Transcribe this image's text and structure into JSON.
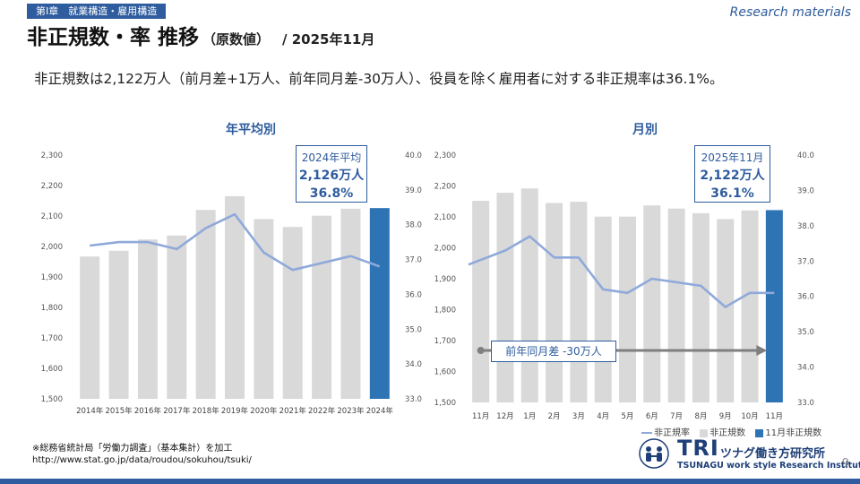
{
  "header": {
    "chapter": "第Ⅰ章　就業構造・雇用構造",
    "brand": "Research materials",
    "title_main": "非正規数・率 推移",
    "title_sub": "（原数値）",
    "title_date": "/ 2025年11月",
    "summary": "非正規数は2,122万人（前月差+1万人、前年同月差-30万人）、役員を除く雇用者に対する非正規率は36.1%。"
  },
  "colors": {
    "bar": "#d9d9d9",
    "highlight_bar": "#2e74b5",
    "line": "#8fa9da",
    "accent": "#2e5c9e"
  },
  "chart_data": [
    {
      "type": "bar",
      "title": "年平均別",
      "categories": [
        "2014年",
        "2015年",
        "2016年",
        "2017年",
        "2018年",
        "2019年",
        "2020年",
        "2021年",
        "2022年",
        "2023年",
        "2024年"
      ],
      "y_left": {
        "min": 1500,
        "max": 2300,
        "ticks": [
          "1,500",
          "1,600",
          "1,700",
          "1,800",
          "1,900",
          "2,000",
          "2,100",
          "2,200",
          "2,300"
        ]
      },
      "y_right": {
        "min": 33.0,
        "max": 40.0,
        "ticks": [
          "33.0",
          "34.0",
          "35.0",
          "36.0",
          "37.0",
          "38.0",
          "39.0",
          "40.0"
        ]
      },
      "series": [
        {
          "name": "非正規数",
          "axis": "left",
          "kind": "bar",
          "values": [
            1967,
            1986,
            2023,
            2036,
            2120,
            2165,
            2090,
            2064,
            2101,
            2124,
            2126
          ]
        },
        {
          "name": "非正規率",
          "axis": "right",
          "kind": "line",
          "values": [
            37.4,
            37.5,
            37.5,
            37.3,
            37.9,
            38.3,
            37.2,
            36.7,
            36.9,
            37.1,
            36.8
          ]
        }
      ],
      "highlight_index": 10,
      "callout": {
        "line1": "2024年平均",
        "line2": "2,126万人",
        "line3": "36.8%"
      }
    },
    {
      "type": "bar",
      "title": "月別",
      "categories": [
        "11月",
        "12月",
        "1月",
        "2月",
        "3月",
        "4月",
        "5月",
        "6月",
        "7月",
        "8月",
        "9月",
        "10月",
        "11月"
      ],
      "y_left": {
        "min": 1500,
        "max": 2300,
        "ticks": [
          "1,500",
          "1,600",
          "1,700",
          "1,800",
          "1,900",
          "2,000",
          "2,100",
          "2,200",
          "2,300"
        ]
      },
      "y_right": {
        "min": 33.0,
        "max": 40.0,
        "ticks": [
          "33.0",
          "34.0",
          "35.0",
          "36.0",
          "37.0",
          "38.0",
          "39.0",
          "40.0"
        ]
      },
      "series": [
        {
          "name": "非正規数",
          "axis": "left",
          "kind": "bar",
          "values": [
            2152,
            2178,
            2192,
            2145,
            2149,
            2101,
            2101,
            2137,
            2127,
            2112,
            2093,
            2121,
            2122
          ]
        },
        {
          "name": "非正規率",
          "axis": "right",
          "kind": "line",
          "values": [
            36.9,
            37.3,
            37.7,
            37.1,
            37.1,
            36.2,
            36.1,
            36.5,
            36.4,
            36.3,
            35.7,
            36.1,
            36.1
          ]
        }
      ],
      "highlight_index": 12,
      "callout": {
        "line1": "2025年11月",
        "line2": "2,122万人",
        "line3": "36.1%"
      },
      "annotation": "前年同月差 -30万人",
      "legend": [
        "非正規率",
        "非正規数",
        "11月非正規数"
      ]
    }
  ],
  "footer": {
    "source_line1": "※総務省統計局「労働力調査」（基本集計）を加工",
    "source_line2": "http://www.stat.go.jp/data/roudou/sokuhou/tsuki/",
    "logo_tri": "TRI",
    "logo_jp": "ツナグ働き方研究所",
    "logo_en": "TSUNAGU work style Research Institute",
    "page_number": "9"
  }
}
